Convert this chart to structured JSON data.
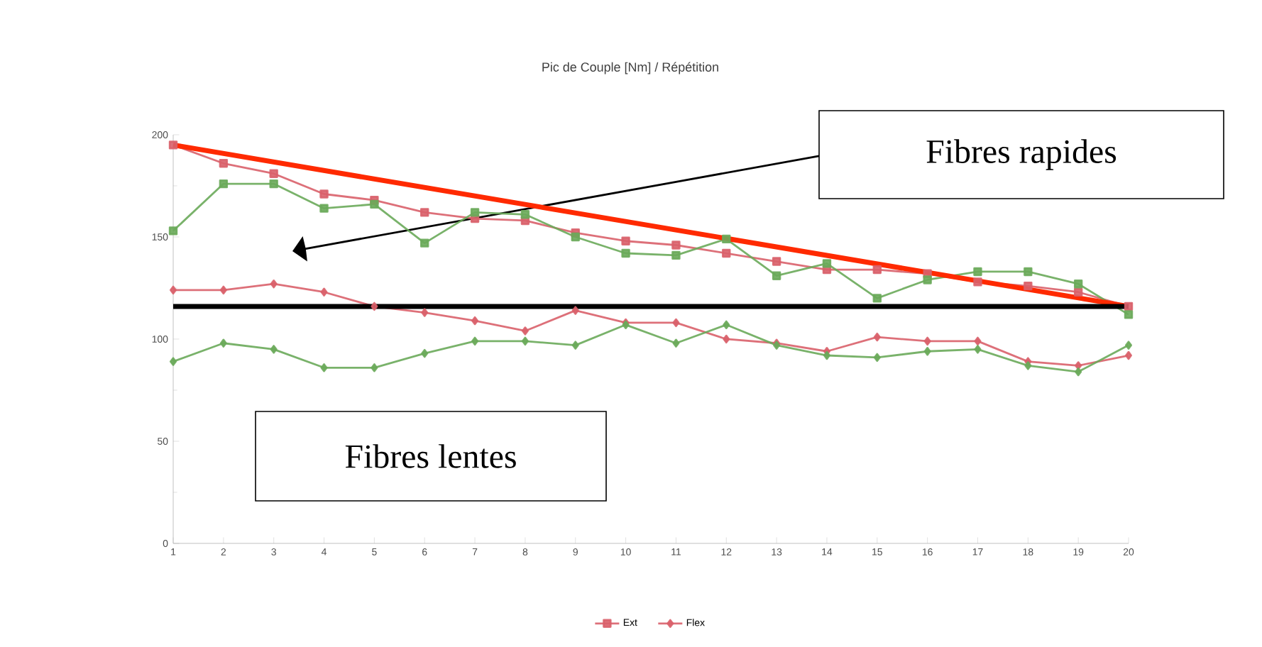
{
  "chart_data": {
    "type": "line",
    "title": "Pic de Couple [Nm] / Répétition",
    "x": [
      1,
      2,
      3,
      4,
      5,
      6,
      7,
      8,
      9,
      10,
      11,
      12,
      13,
      14,
      15,
      16,
      17,
      18,
      19,
      20
    ],
    "xlim": [
      1,
      20
    ],
    "xticks": [
      1,
      2,
      3,
      4,
      5,
      6,
      7,
      8,
      9,
      10,
      11,
      12,
      13,
      14,
      15,
      16,
      17,
      18,
      19,
      20
    ],
    "ylim": [
      0,
      200
    ],
    "yticks": [
      0,
      50,
      100,
      150,
      200
    ],
    "grid": false,
    "legend": "bottom",
    "series": [
      {
        "name": "Ext",
        "color": "#d9606a",
        "marker": "square",
        "values": [
          195,
          186,
          181,
          171,
          168,
          162,
          159,
          158,
          152,
          148,
          146,
          142,
          138,
          134,
          134,
          132,
          128,
          126,
          123,
          116
        ]
      },
      {
        "name": "Flex",
        "color": "#d9606a",
        "marker": "diamond",
        "values": [
          124,
          124,
          127,
          123,
          116,
          113,
          109,
          104,
          114,
          108,
          108,
          100,
          98,
          94,
          101,
          99,
          99,
          89,
          87,
          92
        ]
      },
      {
        "color": "#6aaa5a",
        "marker": "square",
        "values": [
          153,
          176,
          176,
          164,
          166,
          147,
          162,
          161,
          150,
          142,
          141,
          149,
          131,
          137,
          120,
          129,
          133,
          133,
          127,
          112
        ]
      },
      {
        "color": "#6aaa5a",
        "marker": "diamond",
        "values": [
          89,
          98,
          95,
          86,
          86,
          93,
          99,
          99,
          97,
          107,
          98,
          107,
          97,
          92,
          91,
          94,
          95,
          87,
          84,
          97
        ]
      },
      {
        "type": "line",
        "color": "#ff2a00",
        "marker": "none",
        "x": [
          1,
          20
        ],
        "values": [
          195,
          116
        ]
      }
    ],
    "ref_lines": [
      {
        "axis": "y",
        "value": 116,
        "color": "#000000"
      }
    ],
    "annotations": [
      "Fibres rapides",
      "Fibres lentes"
    ]
  }
}
